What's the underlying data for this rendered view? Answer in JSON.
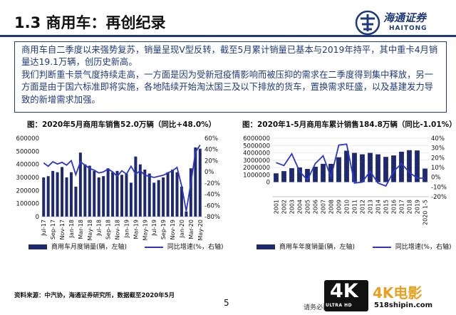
{
  "header": {
    "title": "1.3 商用车：再创纪录"
  },
  "logo": {
    "cn": "海通证券",
    "en": "HAITONG"
  },
  "summary": {
    "p1": "商用车自二季度以来强势复苏，销量呈现V型反转，截至5月累计销量已基本与2019年持平，其中重卡4月销量达19.1万辆，创历史新高。",
    "p2": "我们判断重卡景气度持续走高，一方面是因为受新冠疫情影响而被压抑的需求在二季度得到集中释放，另一方面是由于国六标准即将实施，各地陆续开始淘汰国三及以下排放的货车，置换需求旺盛，以及基建发力导致的新增需求加强。"
  },
  "chart_data": [
    {
      "type": "bar",
      "title": "图：2020年5月商用车销售52.0万辆（同比+48.0%）",
      "x": [
        "Jul-17",
        "Aug-17",
        "Sep-17",
        "Oct-17",
        "Nov-17",
        "Dec-17",
        "Jan-18",
        "Feb-18",
        "Mar-18",
        "Apr-18",
        "May-18",
        "Jun-18",
        "Jul-18",
        "Aug-18",
        "Sep-18",
        "Oct-18",
        "Nov-18",
        "Dec-18",
        "Jan-19",
        "Feb-19",
        "Mar-19",
        "Apr-19",
        "May-19",
        "Jun-19",
        "Jul-19",
        "Aug-19",
        "Sep-19",
        "Oct-19",
        "Nov-19",
        "Dec-19",
        "Jan-20",
        "Feb-20",
        "Mar-20",
        "Apr-20",
        "May-20"
      ],
      "xticks": [
        "Jul-17",
        "Sep-17",
        "Nov-17",
        "Jan-18",
        "Mar-18",
        "May-18",
        "Jul-18",
        "Sep-18",
        "Nov-18",
        "Jan-19",
        "Mar-19",
        "May-19",
        "Jul-19",
        "Sep-19",
        "Nov-19",
        "Jan-20",
        "Mar-20",
        "May-20"
      ],
      "series": [
        {
          "name": "商用车月度销量(辆，左轴)",
          "axis": "left",
          "values": [
            300000,
            310000,
            350000,
            340000,
            380000,
            300000,
            340000,
            230000,
            490000,
            400000,
            390000,
            350000,
            300000,
            310000,
            370000,
            340000,
            350000,
            320000,
            330000,
            260000,
            460000,
            400000,
            360000,
            330000,
            260000,
            280000,
            300000,
            340000,
            360000,
            340000,
            230000,
            40000,
            370000,
            530000,
            520000
          ]
        },
        {
          "name": "同比增速(%，右轴)",
          "axis": "right",
          "values": [
            16,
            10,
            18,
            14,
            17,
            12,
            20,
            -5,
            18,
            12,
            6,
            3,
            -2,
            0,
            5,
            0,
            -8,
            2,
            -4,
            10,
            -4,
            2,
            -6,
            -8,
            -10,
            -8,
            -6,
            -2,
            2,
            8,
            -25,
            -70,
            -20,
            35,
            48
          ]
        }
      ],
      "yleft": {
        "ticks": [
          "0",
          "100000",
          "200000",
          "300000",
          "400000",
          "500000",
          "600000"
        ],
        "lim": [
          0,
          600000
        ]
      },
      "yright": {
        "ticks": [
          "-80%",
          "-60%",
          "-40%",
          "-20%",
          "0%",
          "20%",
          "40%",
          "60%"
        ],
        "lim": [
          -80,
          60
        ]
      }
    },
    {
      "type": "bar",
      "title": "图：2020年1-5月商用车累计销售184.8万辆（同比-1.01%）",
      "x": [
        "2001",
        "2002",
        "2003",
        "2004",
        "2005",
        "2006",
        "2007",
        "2008",
        "2009",
        "2010",
        "2011",
        "2012",
        "2013",
        "2014",
        "2015",
        "2016",
        "2017",
        "2018",
        "2019",
        "2020 1-5"
      ],
      "series": [
        {
          "name": "商用车年度销量(辆，左轴)",
          "axis": "left",
          "values": [
            1200000,
            1500000,
            1900000,
            2000000,
            1800000,
            2100000,
            2500000,
            2500000,
            3400000,
            4300000,
            4000000,
            3800000,
            4000000,
            3800000,
            3450000,
            3650000,
            4160000,
            4370000,
            4330000,
            1850000
          ]
        },
        {
          "name": "同比增速(%，右轴)",
          "axis": "right",
          "values": [
            15,
            12,
            24,
            6,
            -3,
            14,
            22,
            0,
            33,
            34,
            -6,
            -5,
            6,
            -6,
            -9,
            6,
            14,
            5,
            -1,
            -1
          ]
        }
      ],
      "yleft": {
        "ticks": [
          "0",
          "1000000",
          "2000000",
          "3000000",
          "4000000",
          "5000000",
          "6000000"
        ],
        "lim": [
          -2000000,
          6000000
        ]
      },
      "yright": {
        "ticks": [
          "-20%",
          "-10%",
          "0%",
          "10%",
          "20%",
          "30%",
          "40%"
        ],
        "lim": [
          -20,
          40
        ]
      }
    }
  ],
  "source": "资料来源：中汽协，海通证券研究所，数据截至2020年5月",
  "page": {
    "number": "5",
    "notice": "请务必阅读"
  },
  "watermark": {
    "badge": "4K",
    "sub": "ULTRA HD",
    "name": "4K电影",
    "site": "518shipin.com"
  },
  "colors": {
    "bar": "#1f2a6e",
    "line": "#2c36c8",
    "brand": "#1f3a78"
  }
}
